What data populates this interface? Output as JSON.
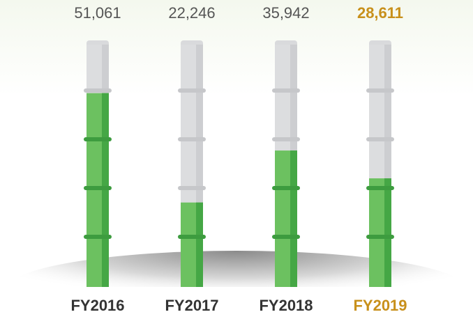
{
  "chart_data": {
    "type": "bar",
    "categories": [
      "FY2016",
      "FY2017",
      "FY2018",
      "FY2019"
    ],
    "values": [
      51061,
      22246,
      35942,
      28611
    ],
    "value_labels": [
      "51,061",
      "22,246",
      "35,942",
      "28,611"
    ],
    "color": "#6cc160",
    "label_colors": [
      "#555555",
      "#555555",
      "#555555",
      "#c8901b"
    ],
    "category_colors": [
      "#333333",
      "#333333",
      "#333333",
      "#c8901b"
    ]
  }
}
